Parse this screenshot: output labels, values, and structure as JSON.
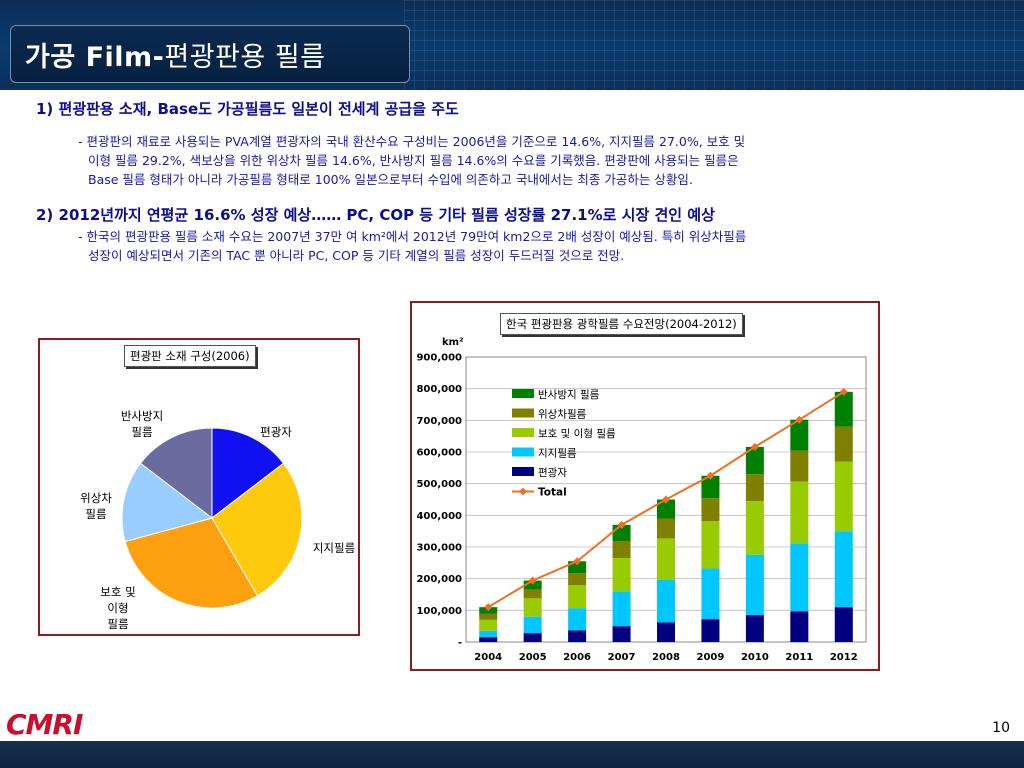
{
  "slide": {
    "title_bold": "가공 Film-",
    "title_rest": "편광판용 필름",
    "page_number": "10",
    "logo": "CMRI"
  },
  "sections": [
    {
      "heading": "1) 편광판용 소재, Base도 가공필름도 일본이 전세계 공급을 주도",
      "lines": [
        "- 편광판의 재료로 사용되는 PVA계열 편광자의 국내 환산수요 구성비는 2006년을 기준으로 14.6%,  지지필름 27.0%, 보호 및",
        "이형 필름 29.2%, 색보상을 위한 위상차 필름 14.6%, 반사방지 필름 14.6%의 수요를 기록했음. 편광판에 사용되는 필름은",
        "Base 필름 형태가 아니라 가공필름 형태로 100% 일본으로부터 수입에 의존하고 국내에서는 최종 가공하는 상황임."
      ]
    },
    {
      "heading": "2) 2012년까지 연평균 16.6% 성장 예상…… PC, COP 등 기타 필름 성장률 27.1%로 시장 견인 예상",
      "lines": [
        "- 한국의 편광판용 필름 소재 수요는 2007년 37만 여 km²에서 2012년 79만여 km2으로 2배 성장이 예상됨. 특히 위상차필름",
        "성장이 예상되면서 기존의 TAC 뿐 아니라 PC, COP 등 기타 계열의 필름 성장이 두드러질 것으로 전망."
      ]
    }
  ],
  "chart_data": [
    {
      "type": "pie",
      "title": "편광판 소재 구성(2006)",
      "slices": [
        {
          "name": "편광자",
          "value": 14.6,
          "color": "#1010f0"
        },
        {
          "name": "지지필름",
          "value": 27.0,
          "color": "#ffc90e"
        },
        {
          "name": "보호 및 이형 필름",
          "value": 29.2,
          "color": "#ffa010"
        },
        {
          "name": "위상차 필름",
          "value": 14.6,
          "color": "#99ccff"
        },
        {
          "name": "반사방지 필름",
          "value": 14.6,
          "color": "#6b6ba0"
        }
      ],
      "labels": {
        "s0": [
          "편광자"
        ],
        "s1": [
          "지지필름"
        ],
        "s2": [
          "보호 및",
          "이형",
          "필름"
        ],
        "s3": [
          "위상차",
          "필름"
        ],
        "s4": [
          "반사방지",
          "필름"
        ]
      }
    },
    {
      "type": "bar",
      "stacked": true,
      "title": "한국 편광판용 광학필름 수요전망(2004-2012)",
      "unit": "km²",
      "categories": [
        "2004",
        "2005",
        "2006",
        "2007",
        "2008",
        "2009",
        "2010",
        "2011",
        "2012"
      ],
      "ylim": [
        0,
        900000
      ],
      "yticks": [
        "-",
        "100,000",
        "200,000",
        "300,000",
        "400,000",
        "500,000",
        "600,000",
        "700,000",
        "800,000",
        "900,000"
      ],
      "series": [
        {
          "name": "편광자",
          "color": "#000080",
          "values": [
            15000,
            28000,
            37000,
            50000,
            62000,
            72000,
            85000,
            97000,
            110000
          ]
        },
        {
          "name": "지지필름",
          "color": "#00c8ff",
          "values": [
            20000,
            52000,
            70000,
            110000,
            135000,
            160000,
            190000,
            215000,
            240000
          ]
        },
        {
          "name": "보호 및 이형 필름",
          "color": "#99cc00",
          "values": [
            35000,
            58000,
            73000,
            105000,
            130000,
            150000,
            170000,
            195000,
            220000
          ]
        },
        {
          "name": "위상차필름",
          "color": "#808000",
          "values": [
            20000,
            28000,
            37000,
            54000,
            63000,
            72000,
            85000,
            97000,
            110000
          ]
        },
        {
          "name": "반사방지 필름",
          "color": "#008000",
          "values": [
            20000,
            28000,
            38000,
            51000,
            60000,
            71000,
            86000,
            98000,
            110000
          ]
        }
      ],
      "total": {
        "name": "Total",
        "color": "#f07020",
        "values": [
          110000,
          194000,
          255000,
          370000,
          450000,
          525000,
          616000,
          702000,
          790000
        ]
      },
      "legend_order": [
        "반사방지 필름",
        "위상차필름",
        "보호 및 이형 필름",
        "지지필름",
        "편광자",
        "Total"
      ],
      "legend_position": "top-left"
    }
  ]
}
